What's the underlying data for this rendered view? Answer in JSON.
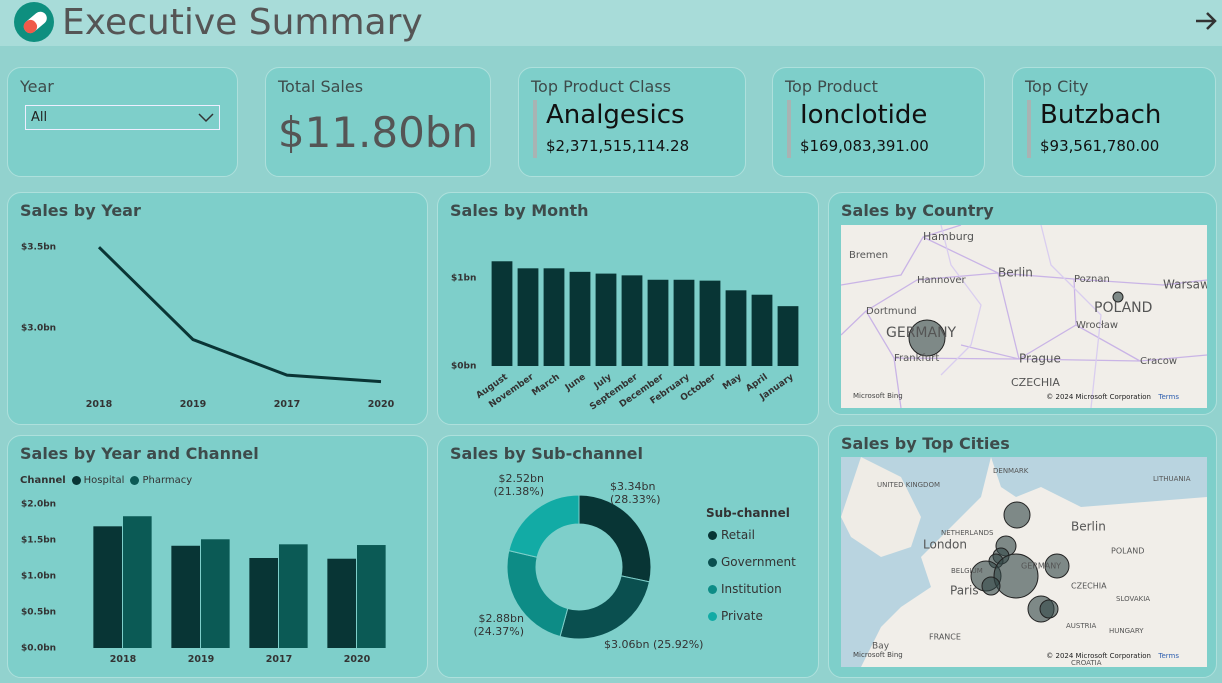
{
  "header": {
    "title": "Executive Summary"
  },
  "slicer": {
    "label": "Year",
    "value": "All"
  },
  "cards": [
    {
      "title": "Total Sales",
      "value": "$11.80bn"
    },
    {
      "title": "Top Product Class",
      "value": "Analgesics",
      "detail": "$2,371,515,114.28"
    },
    {
      "title": "Top Product",
      "value": "Ionclotide",
      "detail": "$169,083,391.00"
    },
    {
      "title": "Top City",
      "value": "Butzbach",
      "detail": "$93,561,780.00"
    }
  ],
  "chart_data": [
    {
      "type": "line",
      "title": "Sales by Year",
      "categories": [
        "2018",
        "2019",
        "2017",
        "2020"
      ],
      "values": [
        3.5,
        2.93,
        2.71,
        2.67
      ],
      "color": "#0a3535",
      "ylim": [
        2.6,
        3.6
      ],
      "yticks": [
        {
          "value": 3,
          "label": "$3.0bn"
        },
        {
          "value": 3.5,
          "label": "$3.5bn"
        }
      ]
    },
    {
      "type": "bar",
      "title": "Sales by Month",
      "categories": [
        "August",
        "November",
        "March",
        "June",
        "July",
        "September",
        "December",
        "February",
        "October",
        "May",
        "April",
        "January"
      ],
      "values": [
        1.19,
        1.11,
        1.11,
        1.07,
        1.05,
        1.03,
        0.98,
        0.98,
        0.97,
        0.86,
        0.81,
        0.68
      ],
      "color": "#083535",
      "ylim": [
        0,
        1.25
      ],
      "yticks": [
        {
          "value": 0,
          "label": "$0bn"
        },
        {
          "value": 1,
          "label": "$1bn"
        }
      ]
    },
    {
      "type": "bar",
      "title": "Sales by Year and Channel",
      "legend_title": "Channel",
      "categories": [
        "2018",
        "2019",
        "2017",
        "2020"
      ],
      "series": [
        {
          "name": "Hospital",
          "color": "#083535",
          "values": [
            1.69,
            1.42,
            1.25,
            1.24
          ]
        },
        {
          "name": "Pharmacy",
          "color": "#0b5a55",
          "values": [
            1.83,
            1.51,
            1.44,
            1.43
          ]
        }
      ],
      "ylim": [
        0,
        2
      ],
      "yticks": [
        {
          "value": 0,
          "label": "$0.0bn"
        },
        {
          "value": 0.5,
          "label": "$0.5bn"
        },
        {
          "value": 1,
          "label": "$1.0bn"
        },
        {
          "value": 1.5,
          "label": "$1.5bn"
        },
        {
          "value": 2,
          "label": "$2.0bn"
        }
      ]
    },
    {
      "type": "donut",
      "title": "Sales by Sub-channel",
      "legend_title": "Sub-channel",
      "categories": [
        "Retail",
        "Government",
        "Institution",
        "Private"
      ],
      "values": [
        3.34,
        3.06,
        2.88,
        2.52
      ],
      "value_labels": [
        "$3.34bn (28.33%)",
        "$3.06bn (25.92%)",
        "$2.88bn (24.37%)",
        "$2.52bn (21.38%)"
      ],
      "colors": [
        "#083535",
        "#0a4f4f",
        "#0d8c86",
        "#12aba5"
      ]
    }
  ],
  "maps": [
    {
      "title": "Sales by Country",
      "labels": [
        "Hamburg",
        "Bremen",
        "Hannover",
        "Berlin",
        "Poznan",
        "POLAND",
        "Warsaw",
        "Dortmund",
        "GERMANY",
        "Wrocław",
        "Frankfurt",
        "Prague",
        "Cracow",
        "CZECHIA"
      ],
      "attribution": "© 2024 Microsoft Corporation",
      "terms": "Terms",
      "logo": "Microsoft Bing"
    },
    {
      "title": "Sales by Top Cities",
      "labels": [
        "DENMARK",
        "LITHUANIA",
        "UNITED KINGDOM",
        "Berlin",
        "NETHERLANDS",
        "London",
        "POLAND",
        "BELGIUM",
        "GERMANY",
        "CZECHIA",
        "Paris",
        "SLOVAKIA",
        "AUSTRIA",
        "HUNGARY",
        "FRANCE",
        "CROATIA",
        "Bay"
      ],
      "attribution": "© 2024 Microsoft Corporation",
      "terms": "Terms",
      "logo": "Microsoft Bing"
    }
  ]
}
